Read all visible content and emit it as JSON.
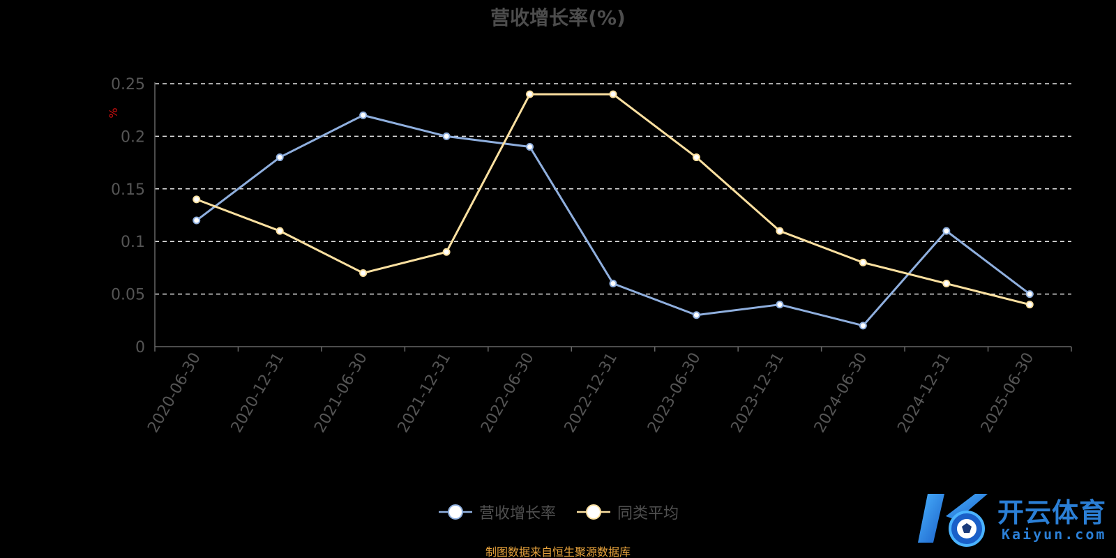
{
  "chart_data": {
    "type": "line",
    "title": "营收增长率(%)",
    "ylabel": "%",
    "ylim": [
      0,
      0.25
    ],
    "yticks": [
      "0",
      "0.05",
      "0.1",
      "0.15",
      "0.2",
      "0.25"
    ],
    "grid": true,
    "categories": [
      "2020-06-30",
      "2020-12-31",
      "2021-06-30",
      "2021-12-31",
      "2022-06-30",
      "2022-12-31",
      "2023-06-30",
      "2023-12-31",
      "2024-06-30",
      "2024-12-31",
      "2025-06-30"
    ],
    "series": [
      {
        "name": "营收增长率",
        "color": "#8fafde",
        "values": [
          0.12,
          0.18,
          0.22,
          0.2,
          0.19,
          0.06,
          0.03,
          0.04,
          0.02,
          0.11,
          0.05
        ]
      },
      {
        "name": "同类平均",
        "color": "#fbe0a0",
        "values": [
          0.14,
          0.11,
          0.07,
          0.09,
          0.24,
          0.24,
          0.18,
          0.11,
          0.08,
          0.06,
          0.04
        ]
      }
    ],
    "legend_position": "bottom",
    "source_note": "制图数据来自恒生聚源数据库"
  },
  "watermark": {
    "text_cn": "开云体育",
    "text_en": "Kaiyun.com"
  }
}
